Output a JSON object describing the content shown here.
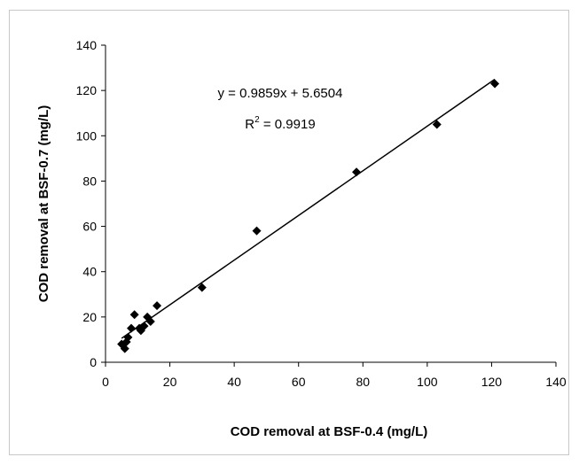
{
  "chart_data": {
    "type": "scatter",
    "xlabel": "COD removal at BSF-0.4 (mg/L)",
    "ylabel": "COD removal at BSF-0.7 (mg/L)",
    "xlim": [
      0,
      140
    ],
    "ylim": [
      0,
      140
    ],
    "x_ticks": [
      0,
      20,
      40,
      60,
      80,
      100,
      120,
      140
    ],
    "y_ticks": [
      0,
      20,
      40,
      60,
      80,
      100,
      120,
      140
    ],
    "grid": false,
    "marker": "diamond",
    "marker_color": "#000000",
    "points": [
      {
        "x": 5,
        "y": 8
      },
      {
        "x": 6,
        "y": 6
      },
      {
        "x": 6.5,
        "y": 9
      },
      {
        "x": 7,
        "y": 11
      },
      {
        "x": 8,
        "y": 15
      },
      {
        "x": 9,
        "y": 21
      },
      {
        "x": 10.5,
        "y": 15
      },
      {
        "x": 11,
        "y": 14
      },
      {
        "x": 12,
        "y": 16
      },
      {
        "x": 13,
        "y": 20
      },
      {
        "x": 14,
        "y": 18
      },
      {
        "x": 16,
        "y": 25
      },
      {
        "x": 30,
        "y": 33
      },
      {
        "x": 47,
        "y": 58
      },
      {
        "x": 78,
        "y": 84
      },
      {
        "x": 103,
        "y": 105
      },
      {
        "x": 121,
        "y": 123
      }
    ],
    "trendline": {
      "slope": 0.9859,
      "intercept": 5.6504,
      "x_range": [
        5,
        121
      ]
    },
    "annotations": {
      "equation": "y = 0.9859x + 5.6504",
      "r2_prefix": "R",
      "r2_sup": "2",
      "r2_suffix": " = 0.9919"
    }
  }
}
